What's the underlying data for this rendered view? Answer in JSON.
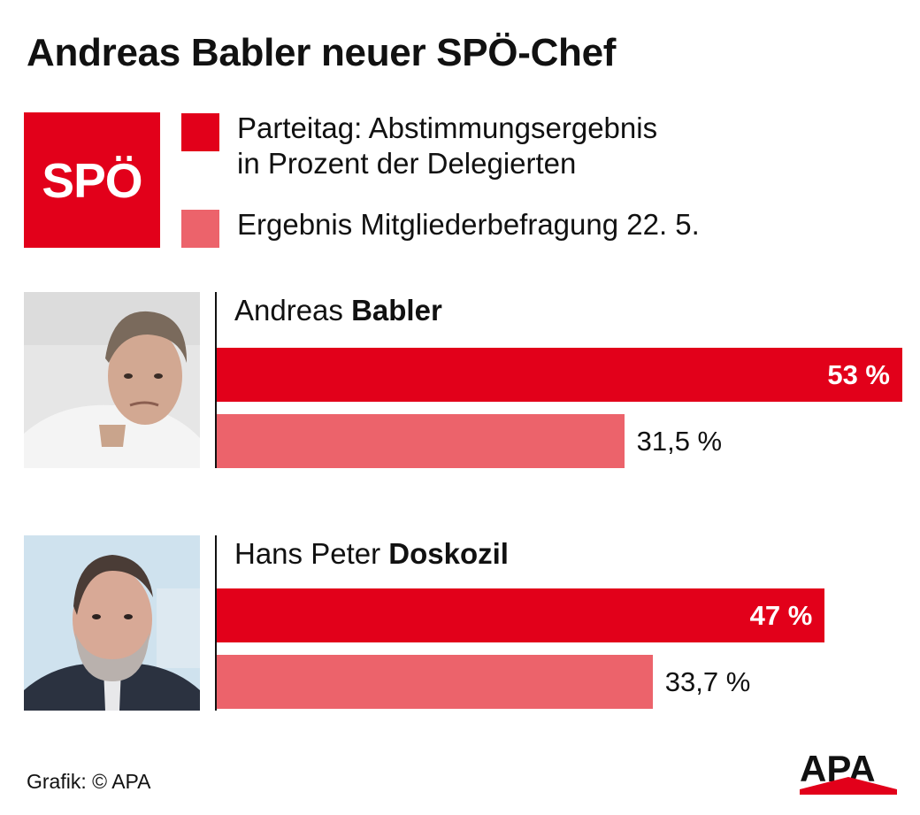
{
  "title": "Andreas Babler neuer SPÖ-Chef",
  "logo_text": "SPÖ",
  "colors": {
    "party_vote": "#e2001a",
    "member_survey": "#ec636b",
    "axis": "#111111"
  },
  "legend": [
    {
      "lines": [
        "Parteitag: Abstimmungsergebnis",
        "in Prozent der Delegierten"
      ],
      "color": "#e2001a"
    },
    {
      "lines": [
        "Ergebnis Mitgliederbefragung 22. 5."
      ],
      "color": "#ec636b"
    }
  ],
  "chart_data": {
    "type": "bar",
    "orientation": "horizontal",
    "title": "Andreas Babler neuer SPÖ-Chef",
    "value_unit": "%",
    "xlim": [
      0,
      53
    ],
    "grid": false,
    "legend_position": "top",
    "series_labels": [
      "Parteitag: Abstimmungsergebnis in Prozent der Delegierten",
      "Ergebnis Mitgliederbefragung 22. 5."
    ],
    "candidates": [
      {
        "first": "Andreas ",
        "last": "Babler",
        "party_vote": {
          "value": 53,
          "label": "53 %"
        },
        "member_survey": {
          "value": 31.5,
          "label": "31,5 %"
        }
      },
      {
        "first": "Hans Peter ",
        "last": "Doskozil",
        "party_vote": {
          "value": 47,
          "label": "47 %"
        },
        "member_survey": {
          "value": 33.7,
          "label": "33,7 %"
        }
      }
    ]
  },
  "credit": "Grafik: © APA",
  "brand": "APA"
}
